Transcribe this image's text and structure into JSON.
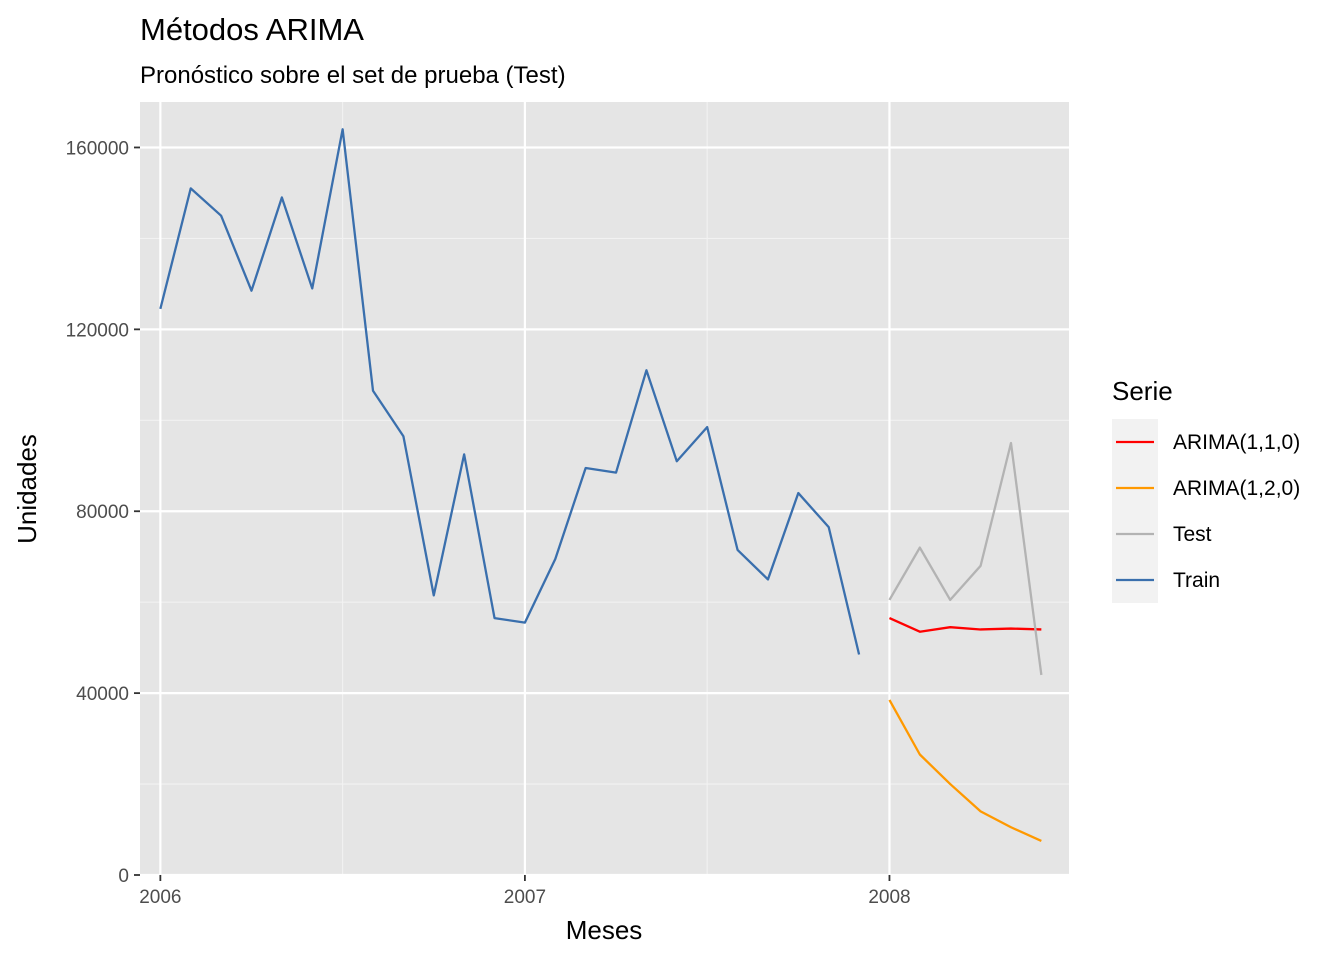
{
  "chart_data": {
    "type": "line",
    "title": "Métodos ARIMA",
    "subtitle": "Pronóstico sobre el set de prueba (Test)",
    "xlabel": "Meses",
    "ylabel": "Unidades",
    "x_ticks": [
      "2006",
      "2007",
      "2008"
    ],
    "y_ticks": [
      "0",
      "40000",
      "80000",
      "120000",
      "160000"
    ],
    "ylim": [
      0,
      170000
    ],
    "xlim": [
      "2005-12",
      "2008-07"
    ],
    "grid": true,
    "legend_position": "right",
    "legend_title": "Serie",
    "series": [
      {
        "name": "ARIMA(1,1,0)",
        "color": "#ff0000",
        "x": [
          "2008-01",
          "2008-02",
          "2008-03",
          "2008-04",
          "2008-05",
          "2008-06"
        ],
        "values": [
          56500,
          53500,
          54500,
          54000,
          54200,
          54000
        ]
      },
      {
        "name": "ARIMA(1,2,0)",
        "color": "#ff9900",
        "x": [
          "2008-01",
          "2008-02",
          "2008-03",
          "2008-04",
          "2008-05",
          "2008-06"
        ],
        "values": [
          38500,
          26500,
          20000,
          14000,
          10500,
          7500
        ]
      },
      {
        "name": "Test",
        "color": "#b3b3b3",
        "x": [
          "2008-01",
          "2008-02",
          "2008-03",
          "2008-04",
          "2008-05",
          "2008-06"
        ],
        "values": [
          60500,
          72000,
          60500,
          68000,
          95000,
          44000
        ]
      },
      {
        "name": "Train",
        "color": "#3a6fad",
        "x": [
          "2006-01",
          "2006-02",
          "2006-03",
          "2006-04",
          "2006-05",
          "2006-06",
          "2006-07",
          "2006-08",
          "2006-09",
          "2006-10",
          "2006-11",
          "2006-12",
          "2007-01",
          "2007-02",
          "2007-03",
          "2007-04",
          "2007-05",
          "2007-06",
          "2007-07",
          "2007-08",
          "2007-09",
          "2007-10",
          "2007-11",
          "2007-12"
        ],
        "values": [
          124500,
          151000,
          145000,
          128500,
          149000,
          129000,
          164000,
          106500,
          96500,
          61500,
          92500,
          56500,
          55500,
          69500,
          89500,
          88500,
          111000,
          91000,
          98500,
          71500,
          65000,
          84000,
          76500,
          48500
        ]
      }
    ]
  }
}
